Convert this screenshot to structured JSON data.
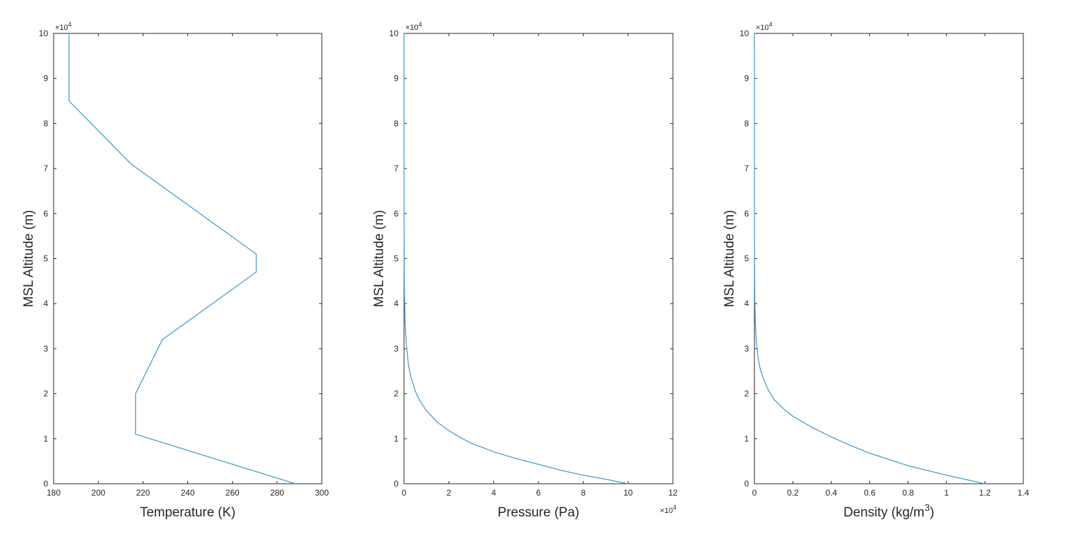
{
  "chart_data": [
    {
      "type": "line",
      "xlabel": "Temperature (K)",
      "ylabel": "MSL Altitude (m)",
      "xlim": [
        180,
        300
      ],
      "xticks": [
        180,
        200,
        220,
        240,
        260,
        280,
        300
      ],
      "xtick_labels": [
        "180",
        "200",
        "220",
        "240",
        "260",
        "280",
        "300"
      ],
      "x_exponent_label": "",
      "ylim": [
        0,
        100000
      ],
      "yticks": [
        0,
        10000,
        20000,
        30000,
        40000,
        50000,
        60000,
        70000,
        80000,
        90000,
        100000
      ],
      "ytick_labels": [
        "0",
        "1",
        "2",
        "3",
        "4",
        "5",
        "6",
        "7",
        "8",
        "9",
        "10"
      ],
      "y_exponent_label": "×10^4",
      "grid": true,
      "line_color": "#4a9ccc",
      "series": [
        {
          "x": [
            288.15,
            216.65,
            216.65,
            228.65,
            270.65,
            270.65,
            214.65,
            186.87,
            186.87
          ],
          "y": [
            0,
            11000,
            20000,
            32000,
            47000,
            51000,
            71000,
            85000,
            100000
          ]
        }
      ]
    },
    {
      "type": "line",
      "xlabel": "Pressure (Pa)",
      "ylabel": "MSL Altitude (m)",
      "xlim": [
        0,
        120000
      ],
      "xticks": [
        0,
        20000,
        40000,
        60000,
        80000,
        100000,
        120000
      ],
      "xtick_labels": [
        "0",
        "2",
        "4",
        "6",
        "8",
        "10",
        "12"
      ],
      "x_exponent_label": "×10^4",
      "ylim": [
        0,
        100000
      ],
      "yticks": [
        0,
        10000,
        20000,
        30000,
        40000,
        50000,
        60000,
        70000,
        80000,
        90000,
        100000
      ],
      "ytick_labels": [
        "0",
        "1",
        "2",
        "3",
        "4",
        "5",
        "6",
        "7",
        "8",
        "9",
        "10"
      ],
      "y_exponent_label": "×10^4",
      "grid": true,
      "line_color": "#4a9ccc",
      "series": [
        {
          "x": [
            100000,
            90000,
            80000,
            70000,
            60000,
            50000,
            40000,
            30000,
            25000,
            20000,
            15000,
            10000,
            7000,
            5000,
            3000,
            2000,
            1000,
            500,
            200,
            100,
            20,
            1,
            0
          ],
          "y": [
            0,
            1000,
            1900,
            3000,
            4300,
            5600,
            7100,
            9000,
            10300,
            11800,
            13600,
            16200,
            18500,
            20600,
            23800,
            26300,
            31000,
            35600,
            42000,
            47500,
            60000,
            80000,
            100000
          ]
        }
      ]
    },
    {
      "type": "line",
      "xlabel": "Density (kg/m",
      "xlabel_superscript": "3",
      "xlabel_suffix": ")",
      "ylabel": "MSL Altitude (m)",
      "xlim": [
        0,
        1.4
      ],
      "xticks": [
        0,
        0.2,
        0.4,
        0.6,
        0.8,
        1,
        1.2,
        1.4
      ],
      "xtick_labels": [
        "0",
        "0.2",
        "0.4",
        "0.6",
        "0.8",
        "1",
        "1.2",
        "1.4"
      ],
      "x_exponent_label": "",
      "ylim": [
        0,
        100000
      ],
      "yticks": [
        0,
        10000,
        20000,
        30000,
        40000,
        50000,
        60000,
        70000,
        80000,
        90000,
        100000
      ],
      "ytick_labels": [
        "0",
        "1",
        "2",
        "3",
        "4",
        "5",
        "6",
        "7",
        "8",
        "9",
        "10"
      ],
      "y_exponent_label": "×10^4",
      "grid": true,
      "line_color": "#4a9ccc",
      "series": [
        {
          "x": [
            1.2,
            1.0,
            0.8,
            0.6,
            0.5,
            0.4,
            0.3,
            0.2,
            0.15,
            0.1,
            0.07,
            0.05,
            0.03,
            0.02,
            0.01,
            0.005,
            0.002,
            0.001,
            0.0001,
            0
          ],
          "y": [
            0,
            1900,
            4000,
            6800,
            8500,
            10400,
            12500,
            15000,
            16700,
            18800,
            21000,
            23000,
            25500,
            27700,
            31500,
            35500,
            41000,
            45500,
            60000,
            100000
          ]
        }
      ]
    }
  ]
}
